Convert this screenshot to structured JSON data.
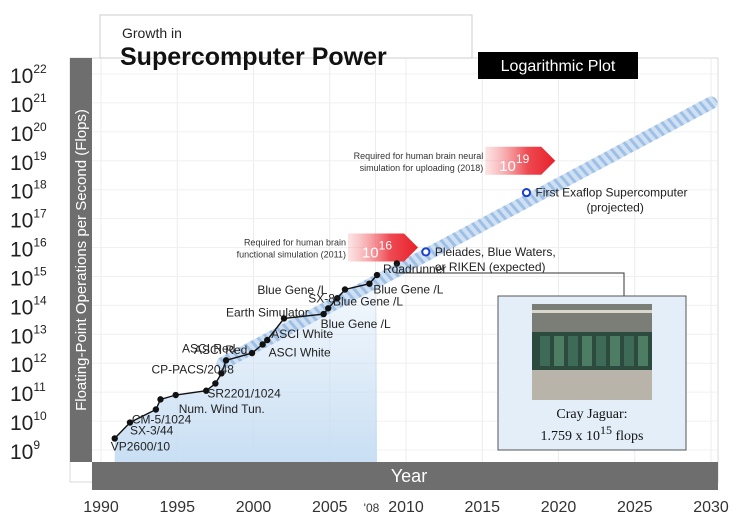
{
  "chart_data": {
    "type": "line",
    "title_line1": "Growth in",
    "title_line2": "Supercomputer Power",
    "scale_tag": "Logarithmic Plot",
    "xlabel": "Year",
    "ylabel": "Floating-Point Operations per Second (Flops)",
    "xlim": [
      1990,
      2030
    ],
    "x_ticks": [
      "1990",
      "1995",
      "2000",
      "2005",
      "'08",
      "2010",
      "2015",
      "2020",
      "2025",
      "2030"
    ],
    "x_tick_values": [
      1990,
      1995,
      2000,
      2005,
      2008,
      2010,
      2015,
      2020,
      2025,
      2030
    ],
    "y_scale": "log",
    "ylim_exp": [
      9,
      22
    ],
    "y_ticks_exp": [
      "9",
      "10",
      "11",
      "12",
      "13",
      "14",
      "15",
      "16",
      "17",
      "18",
      "19",
      "20",
      "21",
      "22"
    ],
    "y_tick_base": "10",
    "series": [
      {
        "points": [
          {
            "year": 1990.9,
            "exp": 9.4,
            "label": "VP2600/10"
          },
          {
            "year": 1991.9,
            "exp": 9.95,
            "label": "SX-3/44"
          },
          {
            "year": 1993.6,
            "exp": 10.4,
            "label": "CM-5/1024"
          },
          {
            "year": 1993.9,
            "exp": 10.75,
            "label": ""
          },
          {
            "year": 1994.9,
            "exp": 10.9,
            "label": "Num. Wind Tun."
          },
          {
            "year": 1996.9,
            "exp": 11.05,
            "label": ""
          },
          {
            "year": 1997.5,
            "exp": 11.3,
            "label": "SR2201/1024"
          },
          {
            "year": 1997.9,
            "exp": 11.65,
            "label": "CP-PACS/2048"
          },
          {
            "year": 1998.2,
            "exp": 12.1,
            "label": "ASCI Red"
          },
          {
            "year": 1999.9,
            "exp": 12.35,
            "label": "ASCI Red"
          },
          {
            "year": 2000.6,
            "exp": 12.65,
            "label": "ASCI White"
          },
          {
            "year": 2000.9,
            "exp": 12.8,
            "label": "ASCI White"
          },
          {
            "year": 2002.0,
            "exp": 13.55,
            "label": "Earth Simulator"
          },
          {
            "year": 2004.6,
            "exp": 13.7,
            "label": "Blue Gene /L"
          },
          {
            "year": 2004.9,
            "exp": 13.9,
            "label": "SX-8"
          },
          {
            "year": 2005.5,
            "exp": 14.25,
            "label": "Blue Gene /L"
          },
          {
            "year": 2006.0,
            "exp": 14.55,
            "label": "Blue Gene /L"
          },
          {
            "year": 2007.6,
            "exp": 14.75,
            "label": "Blue Gene /L"
          },
          {
            "year": 2008.1,
            "exp": 15.05,
            "label": "Roadrunner"
          }
        ]
      }
    ],
    "projected_points": [
      {
        "year": 2011.3,
        "exp": 15.85,
        "label_line1": "Pleiades, Blue Waters,",
        "label_line2": "or RIKEN (expected)"
      },
      {
        "year": 2017.9,
        "exp": 17.9,
        "label_line1": "First Exaflop Supercomputer",
        "label_line2": "(projected)"
      }
    ],
    "extra_point": {
      "year": 2009.4,
      "exp": 15.45
    },
    "trend": {
      "from": {
        "year": 1998,
        "exp": 12.0
      },
      "to": {
        "year": 2030,
        "exp": 21.0
      }
    },
    "requirements": [
      {
        "note_line1": "Required for human brain",
        "note_line2": "functional simulation (2011)",
        "base": "10",
        "exp": "16",
        "year": 2010,
        "exp_pos": 16
      },
      {
        "note_line1": "Required for human brain neural",
        "note_line2": "simulation for uploading (2018)",
        "base": "10",
        "exp": "19",
        "year": 2019,
        "exp_pos": 19
      }
    ],
    "photo_caption_line1": "Cray Jaguar:",
    "photo_caption_base": "1.759 x 10",
    "photo_caption_exp": "15",
    "photo_caption_unit": " flops"
  },
  "colors": {
    "line": "#111111",
    "point": "#111111",
    "projected": "#1b3fd1",
    "trend": "#a9c8ea",
    "fill": "#c6ddf3",
    "arrow": "#e8202a",
    "band": "#6e6e6e",
    "photo_bg": "#e3eef9"
  }
}
